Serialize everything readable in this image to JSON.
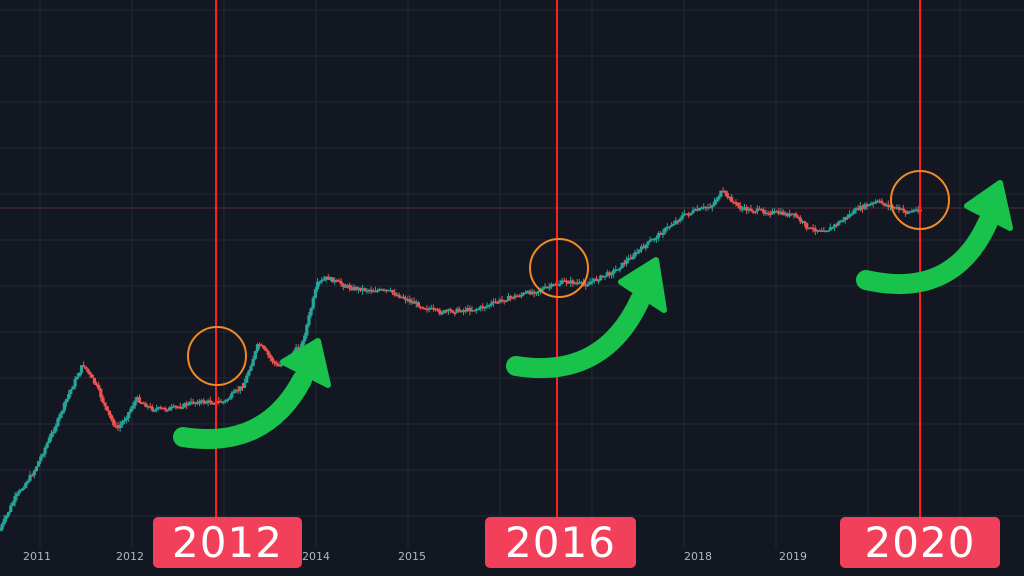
{
  "chart_data": {
    "type": "candlestick",
    "xlabel": "",
    "ylabel": "",
    "scale": "log",
    "grid": true,
    "x_ticks": [
      "2011",
      "2012",
      "2014",
      "2015",
      "2018",
      "2019"
    ],
    "x_range": [
      2010.6,
      2021.1
    ],
    "halvings": [
      {
        "year": 2012.9,
        "label": "2012"
      },
      {
        "year": 2016.55,
        "label": "2016"
      },
      {
        "year": 2020.3,
        "label": "2020"
      }
    ],
    "circled_points": [
      {
        "year": 2012.9,
        "level": 0.6
      },
      {
        "year": 2016.55,
        "level": 0.44
      },
      {
        "year": 2020.3,
        "level": 0.28
      }
    ],
    "price_path_relative_level": [
      [
        2010.6,
        0.99
      ],
      [
        2010.75,
        0.9
      ],
      [
        2010.95,
        0.82
      ],
      [
        2011.05,
        0.76
      ],
      [
        2011.2,
        0.67
      ],
      [
        2011.3,
        0.6
      ],
      [
        2011.45,
        0.51
      ],
      [
        2011.6,
        0.58
      ],
      [
        2011.7,
        0.65
      ],
      [
        2011.8,
        0.7
      ],
      [
        2011.9,
        0.66
      ],
      [
        2012.0,
        0.61
      ],
      [
        2012.15,
        0.64
      ],
      [
        2012.35,
        0.64
      ],
      [
        2012.6,
        0.62
      ],
      [
        2012.9,
        0.62
      ],
      [
        2013.1,
        0.57
      ],
      [
        2013.25,
        0.45
      ],
      [
        2013.45,
        0.52
      ],
      [
        2013.7,
        0.45
      ],
      [
        2013.85,
        0.28
      ],
      [
        2013.95,
        0.26
      ],
      [
        2014.2,
        0.29
      ],
      [
        2014.6,
        0.3
      ],
      [
        2014.9,
        0.34
      ],
      [
        2015.1,
        0.36
      ],
      [
        2015.5,
        0.35
      ],
      [
        2015.8,
        0.32
      ],
      [
        2016.2,
        0.29
      ],
      [
        2016.4,
        0.27
      ],
      [
        2016.6,
        0.28
      ],
      [
        2016.9,
        0.24
      ],
      [
        2017.2,
        0.17
      ],
      [
        2017.6,
        0.08
      ],
      [
        2017.9,
        0.05
      ],
      [
        2018.0,
        0.01
      ],
      [
        2018.2,
        0.06
      ],
      [
        2018.5,
        0.07
      ],
      [
        2018.75,
        0.08
      ],
      [
        2018.9,
        0.12
      ],
      [
        2019.1,
        0.12
      ],
      [
        2019.4,
        0.06
      ],
      [
        2019.6,
        0.04
      ],
      [
        2019.9,
        0.07
      ],
      [
        2020.05,
        0.06
      ]
    ],
    "colors": {
      "up": "#26a69a",
      "down": "#ef5350",
      "halving_line": "#ff1f1f",
      "circle": "#f08a24",
      "arrow": "#19c24b",
      "background": "#131722",
      "grid": "#252a37"
    }
  },
  "badges": {
    "y2012": "2012",
    "y2016": "2016",
    "y2020": "2020"
  }
}
